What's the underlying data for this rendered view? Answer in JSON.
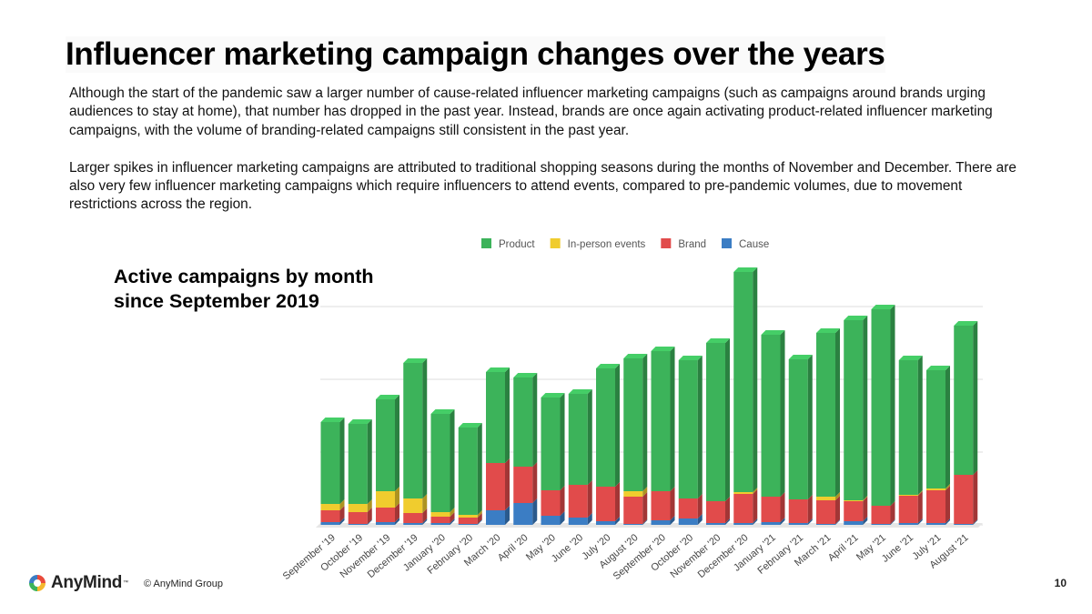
{
  "slide": {
    "title": "Influencer marketing campaign changes over the years",
    "paragraphs": [
      "Although the start of the pandemic saw a larger number of cause-related influencer marketing campaigns (such as campaigns around brands urging audiences to stay at home), that number has dropped in the past year. Instead, brands are once again activating product-related influencer marketing campaigns, with the volume of branding-related campaigns still consistent in the past year.",
      "Larger spikes in influencer marketing campaigns are attributed to traditional shopping seasons during the months of November and December. There are also very few influencer marketing campaigns which require influencers to attend events, compared to pre-pandemic volumes, due to movement restrictions across the region."
    ],
    "chart_title_lines": [
      "Active campaigns by month",
      "since September 2019"
    ],
    "footer": {
      "logo_text": "AnyMind",
      "logo_tm": "™",
      "copyright": "© AnyMind Group",
      "page_number": "10"
    }
  },
  "colors": {
    "product": "#3cb35a",
    "in_person_events": "#f0cc2e",
    "brand": "#e14b4b",
    "cause": "#3b7dc4",
    "gridline": "#dddddd"
  },
  "chart_data": {
    "type": "bar",
    "stacked": true,
    "title": "Active campaigns by month since September 2019",
    "xlabel": "",
    "ylabel": "",
    "ylim": [
      0,
      140
    ],
    "grid": true,
    "legend_position": "top",
    "categories": [
      "September '19",
      "October '19",
      "November '19",
      "December '19",
      "January '20",
      "February '20",
      "March '20",
      "April '20",
      "May '20",
      "June '20",
      "July '20",
      "August '20",
      "September '20",
      "October '20",
      "November '20",
      "December '20",
      "January '21",
      "February '21",
      "March '21",
      "April '21",
      "May '21",
      "June '21",
      "July '21",
      "August '21"
    ],
    "series": [
      {
        "name": "Cause",
        "color_key": "cause",
        "values": [
          1.5,
          0.5,
          1.5,
          1,
          1,
          0.5,
          8,
          12,
          5,
          4,
          2,
          0.5,
          2.5,
          3.5,
          1,
          1,
          1.5,
          1,
          0.5,
          2,
          0.5,
          1,
          1,
          0.5
        ]
      },
      {
        "name": "Brand",
        "color_key": "brand",
        "values": [
          6.5,
          6.5,
          8,
          5.5,
          3.5,
          3.5,
          26,
          20,
          14,
          18,
          19,
          15,
          16,
          11,
          12,
          16,
          14,
          13,
          13,
          11,
          10,
          15,
          18,
          27
        ]
      },
      {
        "name": "In-person events",
        "color_key": "in_person_events",
        "values": [
          3.5,
          4.5,
          9,
          8,
          2.5,
          1.5,
          0,
          0,
          0,
          0,
          0,
          3,
          0,
          0,
          0,
          1,
          0,
          0,
          2,
          0.5,
          0,
          0.5,
          1,
          0
        ]
      },
      {
        "name": "Product",
        "color_key": "product",
        "values": [
          45,
          44,
          50.5,
          74.5,
          54,
          48,
          50,
          49,
          51,
          50,
          65,
          73,
          77,
          76,
          87,
          121,
          89,
          77,
          90,
          99,
          108,
          74,
          65,
          82
        ]
      }
    ],
    "legend_order": [
      "Product",
      "In-person events",
      "Brand",
      "Cause"
    ]
  }
}
